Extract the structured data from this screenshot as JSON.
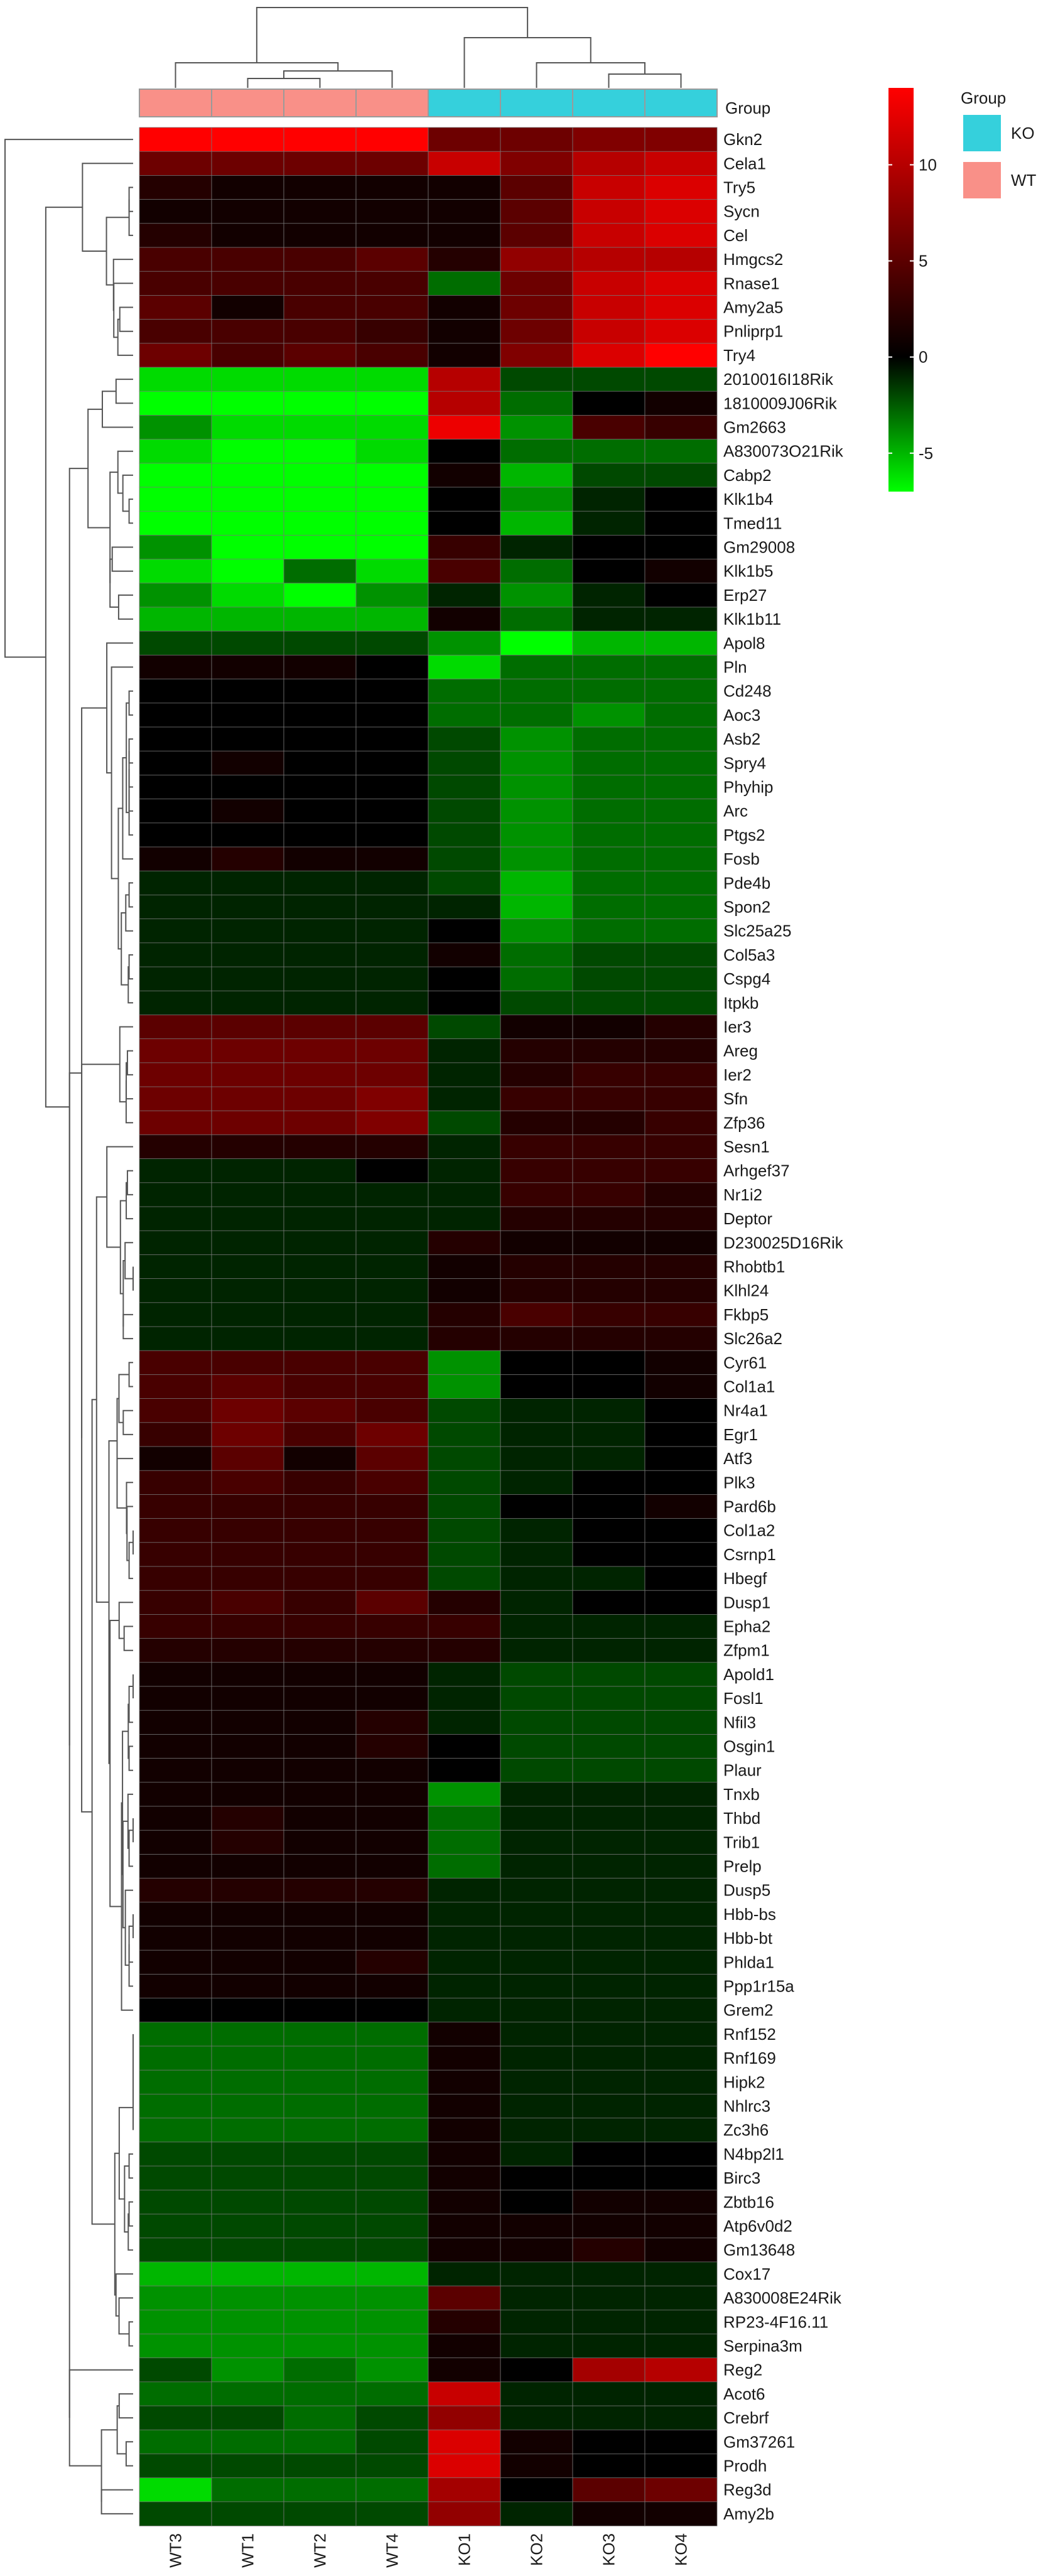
{
  "chart_data": {
    "type": "heatmap",
    "columns": [
      "WT3",
      "WT1",
      "WT2",
      "WT4",
      "KO1",
      "KO2",
      "KO3",
      "KO4"
    ],
    "column_groups": [
      "WT",
      "WT",
      "WT",
      "WT",
      "KO",
      "KO",
      "KO",
      "KO"
    ],
    "group_row_label": "Group",
    "legend": {
      "title": "Group",
      "items": [
        {
          "label": "KO",
          "color": "#35d0dc"
        },
        {
          "label": "WT",
          "color": "#f99088"
        }
      ]
    },
    "colorbar": {
      "range": [
        -7,
        14
      ],
      "ticks": [
        -5,
        0,
        5,
        10
      ],
      "tick_labels": [
        "-5",
        "0",
        "5",
        "10"
      ],
      "colors": {
        "low": "#00ff00",
        "mid": "#000000",
        "high": "#ff0000"
      }
    },
    "rows": [
      {
        "gene": "Gkn2",
        "values": [
          14,
          14,
          14,
          14,
          6,
          6,
          7,
          7
        ]
      },
      {
        "gene": "Cela1",
        "values": [
          6,
          6,
          6,
          6,
          11,
          7,
          10,
          11
        ]
      },
      {
        "gene": "Try5",
        "values": [
          2,
          1,
          1,
          1,
          1,
          5,
          11,
          12
        ]
      },
      {
        "gene": "Sycn",
        "values": [
          1,
          1,
          1,
          1,
          1,
          5,
          11,
          12
        ]
      },
      {
        "gene": "Cel",
        "values": [
          2,
          1,
          1,
          1,
          1,
          5,
          11,
          12
        ]
      },
      {
        "gene": "Hmgcs2",
        "values": [
          4,
          4,
          4,
          5,
          2,
          8,
          10,
          10
        ]
      },
      {
        "gene": "Rnase1",
        "values": [
          4,
          4,
          4,
          4,
          -3,
          6,
          11,
          12
        ]
      },
      {
        "gene": "Amy2a5",
        "values": [
          5,
          1,
          4,
          4,
          1,
          6,
          11,
          12
        ]
      },
      {
        "gene": "Pnliprp1",
        "values": [
          4,
          4,
          4,
          3,
          1,
          6,
          11,
          12
        ]
      },
      {
        "gene": "Try4",
        "values": [
          6,
          4,
          5,
          4,
          1,
          7,
          12,
          14
        ]
      },
      {
        "gene": "2010016I18Rik",
        "values": [
          -6,
          -6,
          -6,
          -6,
          10,
          -2,
          -2,
          -2
        ]
      },
      {
        "gene": "1810009J06Rik",
        "values": [
          -7,
          -7,
          -7,
          -7,
          10,
          -3,
          0,
          1
        ]
      },
      {
        "gene": "Gm2663",
        "values": [
          -4,
          -6,
          -6,
          -6,
          13,
          -4,
          4,
          3
        ]
      },
      {
        "gene": "A830073O21Rik",
        "values": [
          -6,
          -7,
          -7,
          -6,
          0,
          -3,
          -3,
          -3
        ]
      },
      {
        "gene": "Cabp2",
        "values": [
          -7,
          -7,
          -7,
          -7,
          1,
          -5,
          -2,
          -2
        ]
      },
      {
        "gene": "Klk1b4",
        "values": [
          -7,
          -7,
          -7,
          -7,
          0,
          -4,
          -1,
          0
        ]
      },
      {
        "gene": "Tmed11",
        "values": [
          -7,
          -7,
          -7,
          -7,
          0,
          -5,
          -1,
          0
        ]
      },
      {
        "gene": "Gm29008",
        "values": [
          -4,
          -7,
          -7,
          -7,
          3,
          -1,
          0,
          0
        ]
      },
      {
        "gene": "Klk1b5",
        "values": [
          -6,
          -7,
          -3,
          -6,
          4,
          -3,
          0,
          1
        ]
      },
      {
        "gene": "Erp27",
        "values": [
          -4,
          -6,
          -7,
          -4,
          -1,
          -4,
          -1,
          0
        ]
      },
      {
        "gene": "Klk1b11",
        "values": [
          -5,
          -5,
          -5,
          -5,
          1,
          -3,
          -1,
          -1
        ]
      },
      {
        "gene": "Apol8",
        "values": [
          -2,
          -2,
          -2,
          -2,
          -4,
          -7,
          -5,
          -5
        ]
      },
      {
        "gene": "Pln",
        "values": [
          1,
          1,
          1,
          0,
          -6,
          -3,
          -3,
          -3
        ]
      },
      {
        "gene": "Cd248",
        "values": [
          0,
          0,
          0,
          0,
          -3,
          -3,
          -3,
          -3
        ]
      },
      {
        "gene": "Aoc3",
        "values": [
          0,
          0,
          0,
          0,
          -3,
          -3,
          -4,
          -3
        ]
      },
      {
        "gene": "Asb2",
        "values": [
          0,
          0,
          0,
          0,
          -2,
          -4,
          -3,
          -3
        ]
      },
      {
        "gene": "Spry4",
        "values": [
          0,
          1,
          0,
          0,
          -2,
          -4,
          -3,
          -3
        ]
      },
      {
        "gene": "Phyhip",
        "values": [
          0,
          0,
          0,
          0,
          -2,
          -4,
          -3,
          -3
        ]
      },
      {
        "gene": "Arc",
        "values": [
          0,
          1,
          0,
          0,
          -2,
          -4,
          -3,
          -3
        ]
      },
      {
        "gene": "Ptgs2",
        "values": [
          0,
          0,
          0,
          0,
          -2,
          -4,
          -3,
          -3
        ]
      },
      {
        "gene": "Fosb",
        "values": [
          1,
          2,
          1,
          1,
          -2,
          -4,
          -3,
          -3
        ]
      },
      {
        "gene": "Pde4b",
        "values": [
          -1,
          -1,
          -1,
          -1,
          -2,
          -5,
          -3,
          -3
        ]
      },
      {
        "gene": "Spon2",
        "values": [
          -1,
          -1,
          -1,
          -1,
          -1,
          -5,
          -3,
          -3
        ]
      },
      {
        "gene": "Slc25a25",
        "values": [
          -1,
          -1,
          -1,
          -1,
          0,
          -4,
          -3,
          -3
        ]
      },
      {
        "gene": "Col5a3",
        "values": [
          -1,
          -1,
          -1,
          -1,
          1,
          -3,
          -2,
          -2
        ]
      },
      {
        "gene": "Cspg4",
        "values": [
          -1,
          -1,
          -1,
          -1,
          0,
          -3,
          -2,
          -2
        ]
      },
      {
        "gene": "Itpkb",
        "values": [
          -1,
          -1,
          -1,
          -1,
          0,
          -2,
          -2,
          -2
        ]
      },
      {
        "gene": "Ier3",
        "values": [
          5,
          5,
          5,
          5,
          -2,
          1,
          1,
          2
        ]
      },
      {
        "gene": "Areg",
        "values": [
          6,
          6,
          6,
          6,
          -1,
          2,
          2,
          2
        ]
      },
      {
        "gene": "Ier2",
        "values": [
          6,
          6,
          6,
          6,
          -1,
          2,
          3,
          3
        ]
      },
      {
        "gene": "Sfn",
        "values": [
          6,
          6,
          6,
          7,
          -1,
          3,
          3,
          3
        ]
      },
      {
        "gene": "Zfp36",
        "values": [
          6,
          6,
          6,
          7,
          -2,
          2,
          2,
          3
        ]
      },
      {
        "gene": "Sesn1",
        "values": [
          2,
          2,
          2,
          2,
          -1,
          3,
          3,
          3
        ]
      },
      {
        "gene": "Arhgef37",
        "values": [
          -1,
          -1,
          -1,
          0,
          -1,
          3,
          3,
          3
        ]
      },
      {
        "gene": "Nr1i2",
        "values": [
          -1,
          -1,
          -1,
          -1,
          -1,
          3,
          3,
          2
        ]
      },
      {
        "gene": "Deptor",
        "values": [
          -1,
          -1,
          -1,
          -1,
          -1,
          2,
          2,
          2
        ]
      },
      {
        "gene": "D230025D16Rik",
        "values": [
          -1,
          -1,
          -1,
          -1,
          2,
          1,
          1,
          1
        ]
      },
      {
        "gene": "Rhobtb1",
        "values": [
          -1,
          -1,
          -1,
          -1,
          1,
          2,
          2,
          2
        ]
      },
      {
        "gene": "Klhl24",
        "values": [
          -1,
          -1,
          -1,
          -1,
          1,
          2,
          2,
          2
        ]
      },
      {
        "gene": "Fkbp5",
        "values": [
          -1,
          -1,
          -1,
          -1,
          2,
          4,
          3,
          3
        ]
      },
      {
        "gene": "Slc26a2",
        "values": [
          -1,
          -1,
          -1,
          -1,
          2,
          2,
          2,
          2
        ]
      },
      {
        "gene": "Cyr61",
        "values": [
          4,
          4,
          4,
          4,
          -4,
          0,
          0,
          1
        ]
      },
      {
        "gene": "Col1a1",
        "values": [
          4,
          5,
          4,
          4,
          -4,
          0,
          0,
          1
        ]
      },
      {
        "gene": "Nr4a1",
        "values": [
          4,
          6,
          5,
          4,
          -2,
          -1,
          -1,
          0
        ]
      },
      {
        "gene": "Egr1",
        "values": [
          3,
          6,
          4,
          6,
          -2,
          -1,
          -1,
          0
        ]
      },
      {
        "gene": "Atf3",
        "values": [
          1,
          5,
          1,
          5,
          -2,
          -1,
          -1,
          0
        ]
      },
      {
        "gene": "Plk3",
        "values": [
          3,
          4,
          3,
          4,
          -2,
          -1,
          0,
          0
        ]
      },
      {
        "gene": "Pard6b",
        "values": [
          3,
          3,
          3,
          3,
          -2,
          0,
          0,
          1
        ]
      },
      {
        "gene": "Col1a2",
        "values": [
          3,
          3,
          3,
          3,
          -2,
          -1,
          0,
          0
        ]
      },
      {
        "gene": "Csrnp1",
        "values": [
          3,
          3,
          3,
          3,
          -2,
          -1,
          0,
          0
        ]
      },
      {
        "gene": "Hbegf",
        "values": [
          3,
          3,
          3,
          3,
          -2,
          -1,
          -1,
          0
        ]
      },
      {
        "gene": "Dusp1",
        "values": [
          3,
          4,
          3,
          5,
          2,
          -1,
          0,
          0
        ]
      },
      {
        "gene": "Epha2",
        "values": [
          3,
          3,
          3,
          3,
          3,
          -1,
          -1,
          -1
        ]
      },
      {
        "gene": "Zfpm1",
        "values": [
          2,
          2,
          2,
          2,
          2,
          -1,
          -1,
          -1
        ]
      },
      {
        "gene": "Apold1",
        "values": [
          1,
          1,
          1,
          1,
          -1,
          -2,
          -2,
          -2
        ]
      },
      {
        "gene": "Fosl1",
        "values": [
          1,
          1,
          1,
          1,
          -1,
          -2,
          -2,
          -2
        ]
      },
      {
        "gene": "Nfil3",
        "values": [
          1,
          1,
          1,
          2,
          -1,
          -2,
          -2,
          -2
        ]
      },
      {
        "gene": "Osgin1",
        "values": [
          1,
          1,
          1,
          2,
          0,
          -2,
          -2,
          -2
        ]
      },
      {
        "gene": "Plaur",
        "values": [
          1,
          1,
          1,
          1,
          0,
          -2,
          -2,
          -2
        ]
      },
      {
        "gene": "Tnxb",
        "values": [
          1,
          1,
          1,
          1,
          -4,
          -1,
          -1,
          -1
        ]
      },
      {
        "gene": "Thbd",
        "values": [
          1,
          2,
          1,
          1,
          -3,
          -1,
          -1,
          -1
        ]
      },
      {
        "gene": "Trib1",
        "values": [
          1,
          2,
          1,
          1,
          -3,
          -1,
          -1,
          -1
        ]
      },
      {
        "gene": "Prelp",
        "values": [
          1,
          1,
          1,
          1,
          -3,
          -1,
          -1,
          -1
        ]
      },
      {
        "gene": "Dusp5",
        "values": [
          2,
          2,
          2,
          2,
          -1,
          -1,
          -1,
          -1
        ]
      },
      {
        "gene": "Hbb-bs",
        "values": [
          1,
          1,
          1,
          1,
          -1,
          -1,
          -1,
          -1
        ]
      },
      {
        "gene": "Hbb-bt",
        "values": [
          1,
          1,
          1,
          1,
          -1,
          -1,
          -1,
          -1
        ]
      },
      {
        "gene": "Phlda1",
        "values": [
          1,
          1,
          1,
          2,
          -1,
          -1,
          -1,
          -1
        ]
      },
      {
        "gene": "Ppp1r15a",
        "values": [
          1,
          1,
          1,
          1,
          -1,
          -1,
          -1,
          -1
        ]
      },
      {
        "gene": "Grem2",
        "values": [
          0,
          0,
          0,
          0,
          -1,
          -1,
          -1,
          -1
        ]
      },
      {
        "gene": "Rnf152",
        "values": [
          -3,
          -3,
          -3,
          -3,
          1,
          -1,
          -1,
          -1
        ]
      },
      {
        "gene": "Rnf169",
        "values": [
          -3,
          -3,
          -3,
          -3,
          1,
          -1,
          -1,
          -1
        ]
      },
      {
        "gene": "Hipk2",
        "values": [
          -3,
          -3,
          -3,
          -3,
          1,
          -1,
          -1,
          -1
        ]
      },
      {
        "gene": "Nhlrc3",
        "values": [
          -3,
          -3,
          -3,
          -3,
          1,
          -1,
          -1,
          -1
        ]
      },
      {
        "gene": "Zc3h6",
        "values": [
          -3,
          -3,
          -3,
          -3,
          1,
          -1,
          -1,
          -1
        ]
      },
      {
        "gene": "N4bp2l1",
        "values": [
          -2,
          -2,
          -2,
          -2,
          1,
          -1,
          0,
          0
        ]
      },
      {
        "gene": "Birc3",
        "values": [
          -2,
          -2,
          -2,
          -2,
          1,
          0,
          0,
          0
        ]
      },
      {
        "gene": "Zbtb16",
        "values": [
          -2,
          -2,
          -2,
          -2,
          1,
          0,
          1,
          1
        ]
      },
      {
        "gene": "Atp6v0d2",
        "values": [
          -2,
          -2,
          -2,
          -2,
          1,
          1,
          1,
          1
        ]
      },
      {
        "gene": "Gm13648",
        "values": [
          -2,
          -2,
          -2,
          -2,
          1,
          1,
          2,
          1
        ]
      },
      {
        "gene": "Cox17",
        "values": [
          -5,
          -5,
          -5,
          -5,
          -1,
          -1,
          -1,
          -1
        ]
      },
      {
        "gene": "A830008E24Rik",
        "values": [
          -4,
          -4,
          -4,
          -4,
          5,
          -1,
          -1,
          -1
        ]
      },
      {
        "gene": "RP23-4F16.11",
        "values": [
          -4,
          -4,
          -4,
          -4,
          2,
          -1,
          -1,
          -1
        ]
      },
      {
        "gene": "Serpina3m",
        "values": [
          -4,
          -4,
          -4,
          -4,
          1,
          -1,
          -1,
          -1
        ]
      },
      {
        "gene": "Reg2",
        "values": [
          -2,
          -4,
          -3,
          -4,
          1,
          0,
          9,
          10
        ]
      },
      {
        "gene": "Acot6",
        "values": [
          -3,
          -3,
          -3,
          -3,
          11,
          -1,
          -1,
          -1
        ]
      },
      {
        "gene": "Crebrf",
        "values": [
          -2,
          -2,
          -3,
          -2,
          8,
          -1,
          -1,
          -1
        ]
      },
      {
        "gene": "Gm37261",
        "values": [
          -3,
          -3,
          -3,
          -2,
          12,
          1,
          0,
          0
        ]
      },
      {
        "gene": "Prodh",
        "values": [
          -2,
          -2,
          -2,
          -2,
          12,
          1,
          0,
          0
        ]
      },
      {
        "gene": "Reg3d",
        "values": [
          -6,
          -3,
          -3,
          -3,
          9,
          0,
          5,
          6
        ]
      },
      {
        "gene": "Amy2b",
        "values": [
          -2,
          -2,
          -2,
          -2,
          8,
          -1,
          1,
          1
        ]
      }
    ]
  }
}
